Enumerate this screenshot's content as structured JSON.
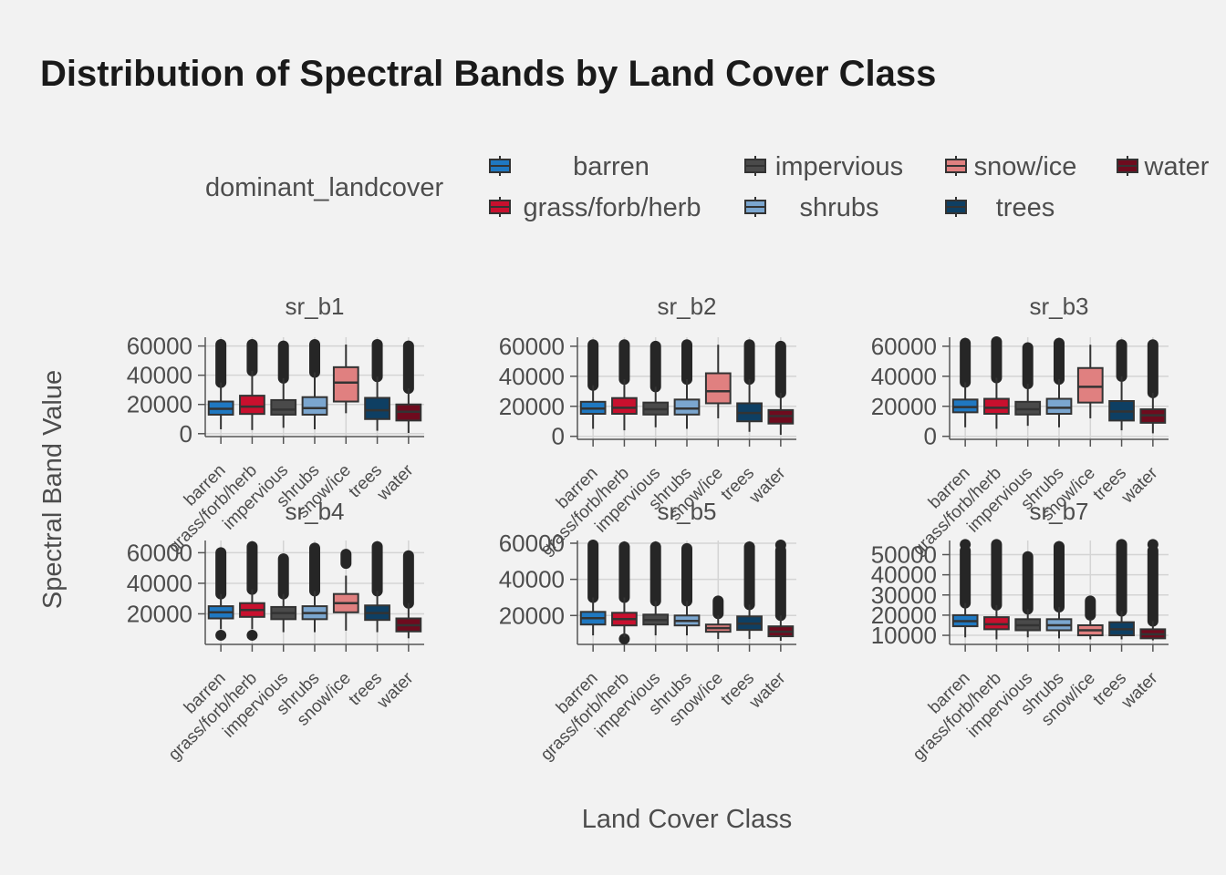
{
  "chart_data": {
    "type": "box",
    "title": "Distribution of Spectral Bands by Land Cover Class",
    "xlabel": "Land Cover Class",
    "ylabel": "Spectral Band Value",
    "legend": {
      "title": "dominant_landcover",
      "position": "top",
      "entries": [
        "barren",
        "impervious",
        "snow/ice",
        "water",
        "grass/forb/herb",
        "shrubs",
        "trees"
      ]
    },
    "categories": [
      "barren",
      "grass/forb/herb",
      "impervious",
      "shrubs",
      "snow/ice",
      "trees",
      "water"
    ],
    "colors": {
      "barren": "#1f78c1",
      "grass/forb/herb": "#c8102e",
      "impervious": "#4a4a4a",
      "shrubs": "#7ba6cf",
      "snow/ice": "#e08080",
      "trees": "#0e3f63",
      "water": "#6e0b1e"
    },
    "grid": true,
    "panels": [
      {
        "name": "sr_b1",
        "ylim": [
          -2000,
          66000
        ],
        "yticks": [
          0,
          20000,
          40000,
          60000
        ],
        "boxes": [
          {
            "class": "barren",
            "whisker_low": 3000,
            "q1": 13000,
            "median": 17000,
            "q3": 22000,
            "whisker_high": 35000,
            "outliers_from": 35000,
            "outliers_to": 61000
          },
          {
            "class": "grass/forb/herb",
            "whisker_low": 2500,
            "q1": 13500,
            "median": 18500,
            "q3": 26000,
            "whisker_high": 43000,
            "outliers_from": 43000,
            "outliers_to": 61000
          },
          {
            "class": "impervious",
            "whisker_low": 4000,
            "q1": 13000,
            "median": 16500,
            "q3": 23000,
            "whisker_high": 38000,
            "outliers_from": 38000,
            "outliers_to": 60000
          },
          {
            "class": "shrubs",
            "whisker_low": 3000,
            "q1": 13000,
            "median": 17500,
            "q3": 25000,
            "whisker_high": 42000,
            "outliers_from": 42000,
            "outliers_to": 61000
          },
          {
            "class": "snow/ice",
            "whisker_low": 14000,
            "q1": 22000,
            "median": 35000,
            "q3": 45500,
            "whisker_high": 61000
          },
          {
            "class": "trees",
            "whisker_low": 2000,
            "q1": 10000,
            "median": 16000,
            "q3": 24500,
            "whisker_high": 39000,
            "outliers_from": 39000,
            "outliers_to": 61000
          },
          {
            "class": "water",
            "whisker_low": 500,
            "q1": 9000,
            "median": 15000,
            "q3": 20000,
            "whisker_high": 31000,
            "outliers_from": 31000,
            "outliers_to": 60000
          }
        ]
      },
      {
        "name": "sr_b2",
        "ylim": [
          -2000,
          66000
        ],
        "yticks": [
          0,
          20000,
          40000,
          60000
        ],
        "boxes": [
          {
            "class": "barren",
            "whisker_low": 5000,
            "q1": 15000,
            "median": 18500,
            "q3": 23000,
            "whisker_high": 34000,
            "outliers_from": 34000,
            "outliers_to": 61000
          },
          {
            "class": "grass/forb/herb",
            "whisker_low": 4000,
            "q1": 15000,
            "median": 19000,
            "q3": 25500,
            "whisker_high": 38000,
            "outliers_from": 38000,
            "outliers_to": 61000
          },
          {
            "class": "impervious",
            "whisker_low": 6000,
            "q1": 14500,
            "median": 18000,
            "q3": 22500,
            "whisker_high": 33000,
            "outliers_from": 33000,
            "outliers_to": 60000
          },
          {
            "class": "shrubs",
            "whisker_low": 5000,
            "q1": 14500,
            "median": 18500,
            "q3": 24500,
            "whisker_high": 38000,
            "outliers_from": 38000,
            "outliers_to": 61000
          },
          {
            "class": "snow/ice",
            "whisker_low": 12000,
            "q1": 22000,
            "median": 30000,
            "q3": 42000,
            "whisker_high": 61000
          },
          {
            "class": "trees",
            "whisker_low": 3000,
            "q1": 10000,
            "median": 15500,
            "q3": 22000,
            "whisker_high": 38000,
            "outliers_from": 38000,
            "outliers_to": 61000
          },
          {
            "class": "water",
            "whisker_low": 1000,
            "q1": 8500,
            "median": 13500,
            "q3": 17500,
            "whisker_high": 29000,
            "outliers_from": 29000,
            "outliers_to": 60000
          }
        ]
      },
      {
        "name": "sr_b3",
        "ylim": [
          -2000,
          66000
        ],
        "yticks": [
          0,
          20000,
          40000,
          60000
        ],
        "boxes": [
          {
            "class": "barren",
            "whisker_low": 6000,
            "q1": 16000,
            "median": 19500,
            "q3": 24500,
            "whisker_high": 36000,
            "outliers_from": 36000,
            "outliers_to": 62000
          },
          {
            "class": "grass/forb/herb",
            "whisker_low": 5000,
            "q1": 15000,
            "median": 19000,
            "q3": 25000,
            "whisker_high": 39000,
            "outliers_from": 39000,
            "outliers_to": 63000
          },
          {
            "class": "impervious",
            "whisker_low": 7000,
            "q1": 14500,
            "median": 18000,
            "q3": 23000,
            "whisker_high": 35000,
            "outliers_from": 35000,
            "outliers_to": 59000
          },
          {
            "class": "shrubs",
            "whisker_low": 6000,
            "q1": 15000,
            "median": 19000,
            "q3": 25000,
            "whisker_high": 38000,
            "outliers_from": 38000,
            "outliers_to": 62000
          },
          {
            "class": "snow/ice",
            "whisker_low": 12000,
            "q1": 22500,
            "median": 33000,
            "q3": 45500,
            "whisker_high": 61000
          },
          {
            "class": "trees",
            "whisker_low": 4000,
            "q1": 10500,
            "median": 16500,
            "q3": 23500,
            "whisker_high": 40000,
            "outliers_from": 40000,
            "outliers_to": 61000
          },
          {
            "class": "water",
            "whisker_low": 2000,
            "q1": 9000,
            "median": 14000,
            "q3": 18000,
            "whisker_high": 29000,
            "outliers_from": 29000,
            "outliers_to": 61000
          }
        ]
      },
      {
        "name": "sr_b4",
        "ylim": [
          0,
          68000
        ],
        "yticks": [
          20000,
          40000,
          60000
        ],
        "boxes": [
          {
            "class": "barren",
            "whisker_low": 10000,
            "q1": 17000,
            "median": 21000,
            "q3": 25000,
            "whisker_high": 33000,
            "outliers_from": 33000,
            "outliers_to": 60000,
            "low_outliers": [
              6000
            ]
          },
          {
            "class": "grass/forb/herb",
            "whisker_low": 10000,
            "q1": 18000,
            "median": 22500,
            "q3": 27000,
            "whisker_high": 36000,
            "outliers_from": 36000,
            "outliers_to": 64000,
            "low_outliers": [
              6000
            ]
          },
          {
            "class": "impervious",
            "whisker_low": 8000,
            "q1": 16500,
            "median": 20500,
            "q3": 24500,
            "whisker_high": 33000,
            "outliers_from": 33000,
            "outliers_to": 56000
          },
          {
            "class": "shrubs",
            "whisker_low": 8000,
            "q1": 16500,
            "median": 20500,
            "q3": 25000,
            "whisker_high": 35000,
            "outliers_from": 35000,
            "outliers_to": 63000
          },
          {
            "class": "snow/ice",
            "whisker_low": 9000,
            "q1": 21000,
            "median": 27000,
            "q3": 33000,
            "whisker_high": 45000,
            "outliers_from": 53000,
            "outliers_to": 59000
          },
          {
            "class": "trees",
            "whisker_low": 8000,
            "q1": 16000,
            "median": 20500,
            "q3": 25500,
            "whisker_high": 35000,
            "outliers_from": 35000,
            "outliers_to": 64000
          },
          {
            "class": "water",
            "whisker_low": 4000,
            "q1": 8500,
            "median": 12500,
            "q3": 17000,
            "whisker_high": 27000,
            "outliers_from": 27000,
            "outliers_to": 58000
          }
        ]
      },
      {
        "name": "sr_b5",
        "ylim": [
          4000,
          61500
        ],
        "yticks": [
          20000,
          40000,
          60000
        ],
        "boxes": [
          {
            "class": "barren",
            "whisker_low": 9000,
            "q1": 15000,
            "median": 18500,
            "q3": 22000,
            "whisker_high": 30000,
            "outliers_from": 30000,
            "outliers_to": 59000
          },
          {
            "class": "grass/forb/herb",
            "whisker_low": 8000,
            "q1": 14500,
            "median": 18000,
            "q3": 21500,
            "whisker_high": 30000,
            "outliers_from": 30000,
            "outliers_to": 58000,
            "low_outliers": [
              7000
            ]
          },
          {
            "class": "impervious",
            "whisker_low": 9000,
            "q1": 15000,
            "median": 17500,
            "q3": 20500,
            "whisker_high": 28000,
            "outliers_from": 28000,
            "outliers_to": 58000
          },
          {
            "class": "shrubs",
            "whisker_low": 9000,
            "q1": 14500,
            "median": 17000,
            "q3": 20000,
            "whisker_high": 28000,
            "outliers_from": 28000,
            "outliers_to": 57000
          },
          {
            "class": "snow/ice",
            "whisker_low": 7000,
            "q1": 11000,
            "median": 13000,
            "q3": 15000,
            "whisker_high": 20000,
            "outliers_from": 21000,
            "outliers_to": 28000
          },
          {
            "class": "trees",
            "whisker_low": 7000,
            "q1": 12000,
            "median": 15500,
            "q3": 19500,
            "whisker_high": 26000,
            "outliers_from": 26000,
            "outliers_to": 58000
          },
          {
            "class": "water",
            "whisker_low": 6000,
            "q1": 8500,
            "median": 11000,
            "q3": 14000,
            "whisker_high": 20000,
            "outliers_from": 20000,
            "outliers_to": 56000,
            "high_outliers": [
              59000
            ]
          }
        ]
      },
      {
        "name": "sr_b7",
        "ylim": [
          5500,
          57000
        ],
        "yticks": [
          10000,
          20000,
          30000,
          40000,
          50000
        ],
        "boxes": [
          {
            "class": "barren",
            "whisker_low": 9000,
            "q1": 14500,
            "median": 17000,
            "q3": 20000,
            "whisker_high": 26000,
            "outliers_from": 26000,
            "outliers_to": 52000,
            "high_outliers": [
              55000
            ]
          },
          {
            "class": "grass/forb/herb",
            "whisker_low": 8000,
            "q1": 13000,
            "median": 15500,
            "q3": 19000,
            "whisker_high": 25000,
            "outliers_from": 25000,
            "outliers_to": 55000
          },
          {
            "class": "impervious",
            "whisker_low": 9000,
            "q1": 12500,
            "median": 15000,
            "q3": 18000,
            "whisker_high": 23000,
            "outliers_from": 23000,
            "outliers_to": 49000
          },
          {
            "class": "shrubs",
            "whisker_low": 8500,
            "q1": 12500,
            "median": 15000,
            "q3": 18000,
            "whisker_high": 24000,
            "outliers_from": 24000,
            "outliers_to": 54000
          },
          {
            "class": "snow/ice",
            "whisker_low": 8000,
            "q1": 10000,
            "median": 12500,
            "q3": 15000,
            "whisker_high": 18000,
            "outliers_from": 20000,
            "outliers_to": 27000
          },
          {
            "class": "trees",
            "whisker_low": 8000,
            "q1": 10000,
            "median": 13000,
            "q3": 16500,
            "whisker_high": 22000,
            "outliers_from": 22000,
            "outliers_to": 55000
          },
          {
            "class": "water",
            "whisker_low": 7500,
            "q1": 8500,
            "median": 10500,
            "q3": 13000,
            "whisker_high": 17000,
            "outliers_from": 17000,
            "outliers_to": 52000,
            "high_outliers": [
              55000
            ]
          }
        ]
      }
    ]
  }
}
